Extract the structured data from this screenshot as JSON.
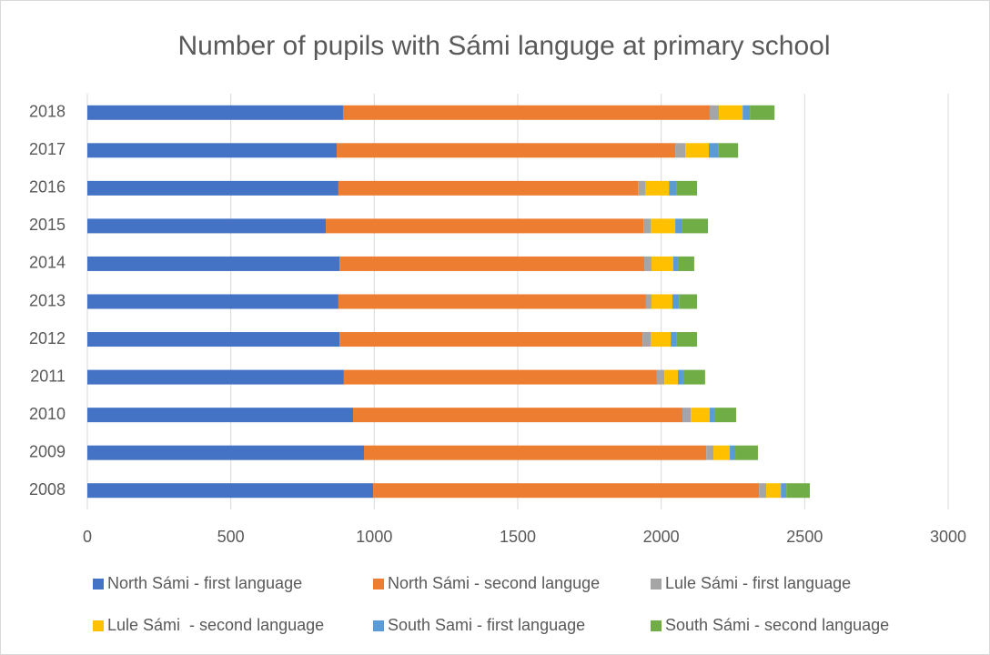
{
  "chart_data": {
    "type": "stacked_bar_horizontal",
    "title": "Number of pupils with Sámi languge at primary school",
    "categories": [
      "2008",
      "2009",
      "2010",
      "2011",
      "2012",
      "2013",
      "2014",
      "2015",
      "2016",
      "2017",
      "2018"
    ],
    "series": [
      {
        "name": "North Sámi - first language",
        "color": "#4472c4",
        "values": [
          996,
          964,
          926,
          894,
          879,
          875,
          879,
          831,
          875,
          869,
          891
        ]
      },
      {
        "name": "North Sámi - second languge",
        "color": "#ed7d31",
        "values": [
          1345,
          1193,
          1148,
          1091,
          1056,
          1072,
          1062,
          1107,
          1044,
          1180,
          1278
        ]
      },
      {
        "name": "Lule Sámi - first language",
        "color": "#a5a5a5",
        "values": [
          25,
          25,
          29,
          26,
          28,
          19,
          25,
          25,
          25,
          35,
          32
        ]
      },
      {
        "name": "Lule Sámi  - second language",
        "color": "#ffc000",
        "values": [
          51,
          57,
          66,
          47,
          70,
          73,
          76,
          86,
          83,
          82,
          83
        ]
      },
      {
        "name": "South Sami - first language",
        "color": "#5b9bd5",
        "values": [
          19,
          19,
          19,
          19,
          19,
          23,
          16,
          22,
          25,
          32,
          25
        ]
      },
      {
        "name": "South Sámi - second language",
        "color": "#70ad47",
        "values": [
          82,
          79,
          73,
          76,
          73,
          63,
          57,
          92,
          73,
          70,
          86
        ]
      }
    ],
    "xlim": [
      0,
      3000
    ],
    "xticks": [
      0,
      500,
      1000,
      1500,
      2000,
      2500,
      3000
    ],
    "grid": true,
    "legend": "bottom"
  }
}
